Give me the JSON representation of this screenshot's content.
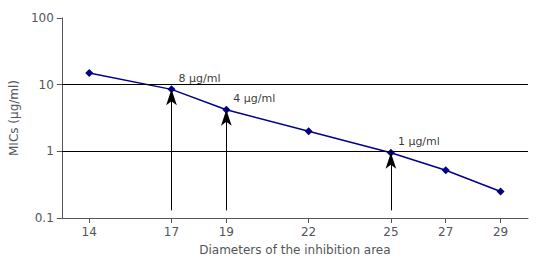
{
  "chart_data": {
    "type": "line",
    "x": [
      14,
      17,
      19,
      22,
      25,
      27,
      29
    ],
    "values": [
      15.0,
      8.5,
      4.2,
      2.0,
      0.95,
      0.52,
      0.25
    ],
    "color": "#00008B",
    "marker": "diamond",
    "xlabel": "Diameters of the inhibition area",
    "ylabel": "MICs (μg/ml)",
    "xlim": [
      13,
      30
    ],
    "ylim": [
      0.1,
      100
    ],
    "xticks": [
      14,
      17,
      19,
      22,
      25,
      27,
      29
    ],
    "yticks": [
      0.1,
      1,
      10,
      100
    ],
    "log": "y",
    "grid": false,
    "hlines": [
      1.0,
      10.0
    ],
    "annotations": [
      {
        "label": "8 μg/ml",
        "x": 17,
        "y": 8.5,
        "arrow_tail": 0.13
      },
      {
        "label": "4 μg/ml",
        "x": 19,
        "y": 4.2,
        "arrow_tail": 0.13
      },
      {
        "label": "1 μg/ml",
        "x": 25,
        "y": 0.95,
        "arrow_tail": 0.13
      }
    ]
  }
}
